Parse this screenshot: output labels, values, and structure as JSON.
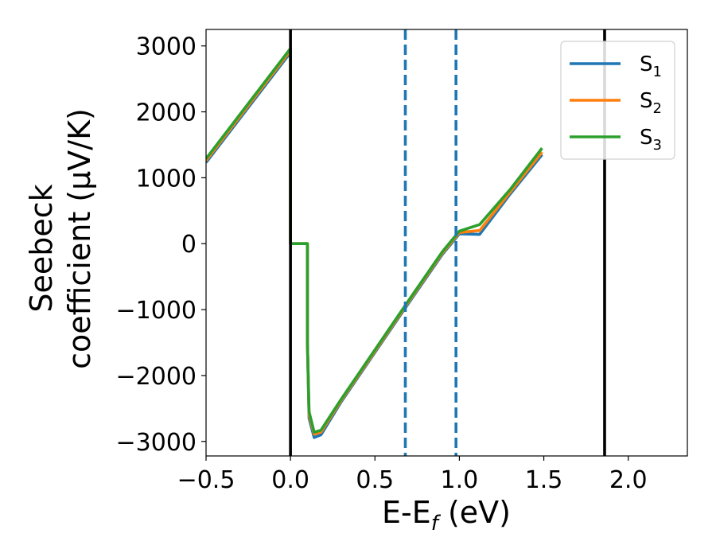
{
  "chart_data": {
    "type": "line",
    "xlabel": "E-E<sub>f</sub> (eV)",
    "xlabel_parts": {
      "main": "E-E",
      "sub": "f",
      "unit": " (eV)"
    },
    "ylabel_line1": "Seebeck",
    "ylabel_line2": "coefficient  (μV/K)",
    "xlim": [
      -0.5,
      2.35
    ],
    "ylim": [
      -3220,
      3250
    ],
    "x_ticks": [
      -0.5,
      0.0,
      0.5,
      1.0,
      1.5,
      2.0
    ],
    "x_tick_labels": [
      "−0.5",
      "0.0",
      "0.5",
      "1.0",
      "1.5",
      "2.0"
    ],
    "y_ticks": [
      3000,
      2000,
      1000,
      0,
      -1000,
      -2000,
      -3000
    ],
    "y_tick_labels": [
      "3000",
      "2000",
      "1000",
      "0",
      "−1000",
      "−2000",
      "−3000"
    ],
    "grid": false,
    "legend_position": "top-right",
    "vlines_solid": [
      0.0,
      1.86
    ],
    "vlines_dashed": [
      0.68,
      0.98
    ],
    "vline_colors": {
      "solid": "#000000",
      "dashed": "#1f77b4"
    },
    "series": [
      {
        "name": "S",
        "sub": "1",
        "color": "#1f77b4",
        "x": [
          -0.5,
          0.0,
          0.0,
          0.02,
          0.1,
          0.1,
          0.11,
          0.14,
          0.18,
          0.3,
          0.5,
          0.7,
          0.9,
          1.0,
          1.12,
          1.3,
          1.49
        ],
        "y": [
          1230,
          2900,
          0,
          0,
          0,
          -1500,
          -2650,
          -2940,
          -2900,
          -2400,
          -1650,
          -900,
          -160,
          150,
          140,
          750,
          1350
        ]
      },
      {
        "name": "S",
        "sub": "2",
        "color": "#ff7f0e",
        "x": [
          -0.5,
          0.0,
          0.0,
          0.02,
          0.1,
          0.1,
          0.11,
          0.14,
          0.18,
          0.3,
          0.5,
          0.7,
          0.9,
          1.0,
          1.12,
          1.3,
          1.49
        ],
        "y": [
          1260,
          2930,
          0,
          0,
          0,
          -1500,
          -2600,
          -2890,
          -2860,
          -2380,
          -1630,
          -880,
          -140,
          170,
          200,
          780,
          1390
        ]
      },
      {
        "name": "S",
        "sub": "3",
        "color": "#2ca02c",
        "x": [
          -0.5,
          0.0,
          0.0,
          0.02,
          0.1,
          0.1,
          0.11,
          0.14,
          0.18,
          0.3,
          0.5,
          0.7,
          0.9,
          1.0,
          1.12,
          1.3,
          1.49
        ],
        "y": [
          1290,
          2960,
          0,
          0,
          0,
          -1500,
          -2550,
          -2860,
          -2830,
          -2360,
          -1610,
          -860,
          -120,
          190,
          290,
          820,
          1450
        ]
      }
    ]
  }
}
